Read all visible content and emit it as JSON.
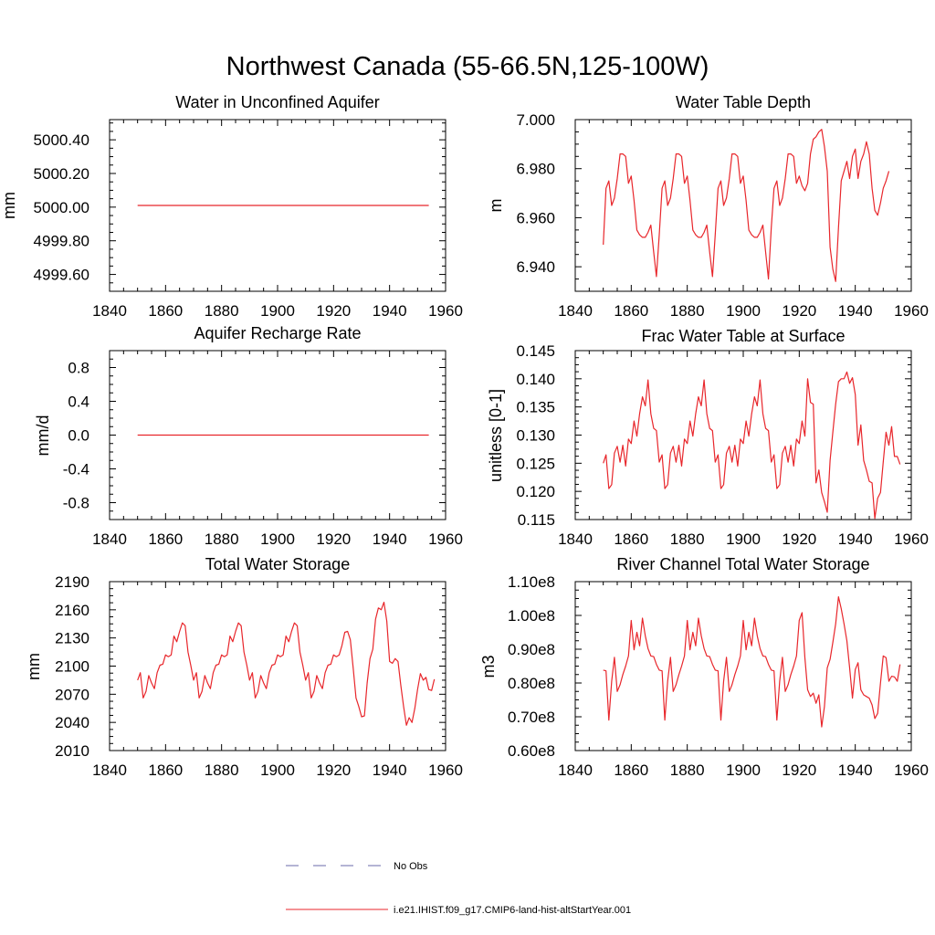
{
  "main_title": "Northwest Canada (55-66.5N,125-100W)",
  "legend": [
    {
      "label": "No Obs",
      "color": "#6a6aa8",
      "style": "dashed"
    },
    {
      "label": "i.e21.IHIST.f09_g17.CMIP6-land-hist-altStartYear.001",
      "color": "#e8262b",
      "style": "solid"
    }
  ],
  "series_color": "#e8262b",
  "chart_data": [
    {
      "type": "line",
      "title": "Water in Unconfined Aquifer",
      "xlabel": "",
      "ylabel": "mm",
      "xlim": [
        1840,
        1960
      ],
      "ylim": [
        4999.5,
        5000.52
      ],
      "xticks": [
        1840,
        1860,
        1880,
        1900,
        1920,
        1940,
        1960
      ],
      "xtick_labels": [
        "1840",
        "1860",
        "1880",
        "1900",
        "1920",
        "1940",
        "1960"
      ],
      "yticks": [
        4999.6,
        4999.8,
        5000.0,
        5000.2,
        5000.4
      ],
      "ytick_labels": [
        "4999.60",
        "4999.80",
        "5000.00",
        "5000.20",
        "5000.40"
      ],
      "grid": false,
      "series": [
        {
          "x0": 1850,
          "dx": 1,
          "values": [
            5000.01,
            5000.01,
            5000.01,
            5000.01,
            5000.01,
            5000.01,
            5000.01,
            5000.01,
            5000.01,
            5000.01,
            5000.01,
            5000.01,
            5000.01,
            5000.01,
            5000.01,
            5000.01,
            5000.01,
            5000.01,
            5000.01,
            5000.01,
            5000.01,
            5000.01,
            5000.01,
            5000.01,
            5000.01,
            5000.01,
            5000.01,
            5000.01,
            5000.01,
            5000.01,
            5000.01,
            5000.01,
            5000.01,
            5000.01,
            5000.01,
            5000.01,
            5000.01,
            5000.01,
            5000.01,
            5000.01,
            5000.01,
            5000.01,
            5000.01,
            5000.01,
            5000.01,
            5000.01,
            5000.01,
            5000.01,
            5000.01,
            5000.01,
            5000.01,
            5000.01,
            5000.01,
            5000.01,
            5000.01,
            5000.01,
            5000.01,
            5000.01,
            5000.01,
            5000.01,
            5000.01,
            5000.01,
            5000.01,
            5000.01,
            5000.01,
            5000.01,
            5000.01,
            5000.01,
            5000.01,
            5000.01,
            5000.01,
            5000.01,
            5000.01,
            5000.01,
            5000.01,
            5000.01,
            5000.01,
            5000.01,
            5000.01,
            5000.01,
            5000.01,
            5000.01,
            5000.01,
            5000.01,
            5000.01,
            5000.01,
            5000.01,
            5000.01,
            5000.01,
            5000.01,
            5000.01,
            5000.01,
            5000.01,
            5000.01,
            5000.01,
            5000.01,
            5000.01,
            5000.01,
            5000.01,
            5000.01,
            5000.01,
            5000.01,
            5000.01,
            5000.01,
            5000.01
          ]
        }
      ]
    },
    {
      "type": "line",
      "title": "Water Table Depth",
      "xlabel": "",
      "ylabel": "m",
      "xlim": [
        1840,
        1960
      ],
      "ylim": [
        6.93,
        7.0
      ],
      "xticks": [
        1840,
        1860,
        1880,
        1900,
        1920,
        1940,
        1960
      ],
      "xtick_labels": [
        "1840",
        "1860",
        "1880",
        "1900",
        "1920",
        "1940",
        "1960"
      ],
      "yticks": [
        6.94,
        6.96,
        6.98,
        7.0
      ],
      "ytick_labels": [
        "6.940",
        "6.960",
        "6.980",
        "7.000"
      ],
      "grid": false,
      "series": [
        {
          "x0": 1850,
          "dx": 1,
          "values": [
            6.949,
            6.972,
            6.975,
            6.965,
            6.968,
            6.976,
            6.986,
            6.986,
            6.985,
            6.974,
            6.977,
            6.967,
            6.955,
            6.953,
            6.952,
            6.952,
            6.954,
            6.957,
            6.946,
            6.936,
            6.953,
            6.972,
            6.975,
            6.965,
            6.968,
            6.976,
            6.986,
            6.986,
            6.985,
            6.974,
            6.977,
            6.967,
            6.955,
            6.953,
            6.952,
            6.952,
            6.954,
            6.957,
            6.946,
            6.936,
            6.953,
            6.972,
            6.975,
            6.965,
            6.968,
            6.976,
            6.986,
            6.986,
            6.985,
            6.974,
            6.977,
            6.967,
            6.955,
            6.953,
            6.952,
            6.952,
            6.954,
            6.957,
            6.946,
            6.935,
            6.956,
            6.972,
            6.975,
            6.965,
            6.968,
            6.976,
            6.986,
            6.986,
            6.985,
            6.974,
            6.977,
            6.973,
            6.971,
            6.974,
            6.986,
            6.992,
            6.993,
            6.995,
            6.996,
            6.989,
            6.979,
            6.948,
            6.939,
            6.934,
            6.956,
            6.975,
            6.979,
            6.983,
            6.976,
            6.985,
            6.988,
            6.976,
            6.983,
            6.986,
            6.991,
            6.986,
            6.972,
            6.963,
            6.961,
            6.966,
            6.972,
            6.975,
            6.979
          ]
        }
      ]
    },
    {
      "type": "line",
      "title": "Aquifer Recharge Rate",
      "xlabel": "",
      "ylabel": "mm/d",
      "xlim": [
        1840,
        1960
      ],
      "ylim": [
        -1,
        1
      ],
      "xticks": [
        1840,
        1860,
        1880,
        1900,
        1920,
        1940,
        1960
      ],
      "xtick_labels": [
        "1840",
        "1860",
        "1880",
        "1900",
        "1920",
        "1940",
        "1960"
      ],
      "yticks": [
        -0.8,
        -0.4,
        0.0,
        0.4,
        0.8
      ],
      "ytick_labels": [
        "-0.8",
        "-0.4",
        "0.0",
        "0.4",
        "0.8"
      ],
      "grid": false,
      "series": [
        {
          "x0": 1850,
          "dx": 1,
          "values": [
            0,
            0,
            0,
            0,
            0,
            0,
            0,
            0,
            0,
            0,
            0,
            0,
            0,
            0,
            0,
            0,
            0,
            0,
            0,
            0,
            0,
            0,
            0,
            0,
            0,
            0,
            0,
            0,
            0,
            0,
            0,
            0,
            0,
            0,
            0,
            0,
            0,
            0,
            0,
            0,
            0,
            0,
            0,
            0,
            0,
            0,
            0,
            0,
            0,
            0,
            0,
            0,
            0,
            0,
            0,
            0,
            0,
            0,
            0,
            0,
            0,
            0,
            0,
            0,
            0,
            0,
            0,
            0,
            0,
            0,
            0,
            0,
            0,
            0,
            0,
            0,
            0,
            0,
            0,
            0,
            0,
            0,
            0,
            0,
            0,
            0,
            0,
            0,
            0,
            0,
            0,
            0,
            0,
            0,
            0,
            0,
            0,
            0,
            0,
            0,
            0,
            0,
            0,
            0,
            0
          ]
        }
      ]
    },
    {
      "type": "line",
      "title": "Frac Water Table at Surface",
      "xlabel": "",
      "ylabel": "unitless [0-1]",
      "xlim": [
        1840,
        1960
      ],
      "ylim": [
        0.115,
        0.145
      ],
      "xticks": [
        1840,
        1860,
        1880,
        1900,
        1920,
        1940,
        1960
      ],
      "xtick_labels": [
        "1840",
        "1860",
        "1880",
        "1900",
        "1920",
        "1940",
        "1960"
      ],
      "yticks": [
        0.115,
        0.12,
        0.125,
        0.13,
        0.135,
        0.14,
        0.145
      ],
      "ytick_labels": [
        "0.115",
        "0.120",
        "0.125",
        "0.130",
        "0.135",
        "0.140",
        "0.145"
      ],
      "grid": false,
      "series": [
        {
          "x0": 1850,
          "dx": 1,
          "values": [
            0.125,
            0.1265,
            0.1205,
            0.1212,
            0.1268,
            0.128,
            0.1252,
            0.1282,
            0.1245,
            0.1293,
            0.1285,
            0.1325,
            0.1298,
            0.1338,
            0.1368,
            0.1352,
            0.1398,
            0.1338,
            0.1312,
            0.1308,
            0.1252,
            0.1265,
            0.1205,
            0.1212,
            0.1268,
            0.128,
            0.1252,
            0.1282,
            0.1245,
            0.1293,
            0.1285,
            0.1325,
            0.1298,
            0.1338,
            0.1368,
            0.1352,
            0.1398,
            0.1338,
            0.1312,
            0.1308,
            0.1252,
            0.1265,
            0.1205,
            0.1212,
            0.1268,
            0.128,
            0.1252,
            0.1282,
            0.1245,
            0.1293,
            0.1285,
            0.1325,
            0.1298,
            0.1338,
            0.1368,
            0.1352,
            0.1398,
            0.1338,
            0.1312,
            0.1308,
            0.1252,
            0.1265,
            0.1205,
            0.1212,
            0.1268,
            0.128,
            0.1252,
            0.1282,
            0.1245,
            0.1293,
            0.1285,
            0.1325,
            0.1298,
            0.14,
            0.1358,
            0.1355,
            0.1215,
            0.1238,
            0.1198,
            0.1182,
            0.1163,
            0.1255,
            0.1305,
            0.1355,
            0.1395,
            0.14,
            0.14,
            0.1412,
            0.1392,
            0.1402,
            0.1372,
            0.1282,
            0.1318,
            0.1255,
            0.1238,
            0.1218,
            0.1215,
            0.1152,
            0.1188,
            0.1198,
            0.1252,
            0.1305,
            0.1282,
            0.1315,
            0.1262,
            0.1262,
            0.1248
          ]
        }
      ]
    },
    {
      "type": "line",
      "title": "Total Water Storage",
      "xlabel": "",
      "ylabel": "mm",
      "xlim": [
        1840,
        1960
      ],
      "ylim": [
        2010,
        2190
      ],
      "xticks": [
        1840,
        1860,
        1880,
        1900,
        1920,
        1940,
        1960
      ],
      "xtick_labels": [
        "1840",
        "1860",
        "1880",
        "1900",
        "1920",
        "1940",
        "1960"
      ],
      "yticks": [
        2010,
        2040,
        2070,
        2100,
        2130,
        2160,
        2190
      ],
      "ytick_labels": [
        "2010",
        "2040",
        "2070",
        "2100",
        "2130",
        "2160",
        "2190"
      ],
      "grid": false,
      "series": [
        {
          "x0": 1850,
          "dx": 1,
          "values": [
            2085,
            2093,
            2066,
            2073,
            2090,
            2082,
            2076,
            2093,
            2101,
            2102,
            2112,
            2110,
            2112,
            2132,
            2126,
            2137,
            2146,
            2143,
            2115,
            2101,
            2085,
            2093,
            2066,
            2073,
            2090,
            2082,
            2076,
            2093,
            2101,
            2102,
            2112,
            2110,
            2112,
            2132,
            2126,
            2137,
            2146,
            2143,
            2115,
            2101,
            2085,
            2093,
            2066,
            2073,
            2090,
            2082,
            2076,
            2093,
            2101,
            2102,
            2112,
            2110,
            2112,
            2132,
            2126,
            2137,
            2146,
            2143,
            2115,
            2101,
            2085,
            2093,
            2066,
            2073,
            2090,
            2082,
            2076,
            2093,
            2101,
            2102,
            2112,
            2110,
            2112,
            2122,
            2136,
            2137,
            2128,
            2098,
            2066,
            2057,
            2046,
            2047,
            2082,
            2108,
            2118,
            2150,
            2162,
            2160,
            2168,
            2148,
            2105,
            2103,
            2108,
            2105,
            2080,
            2057,
            2037,
            2045,
            2040,
            2055,
            2075,
            2092,
            2085,
            2088,
            2075,
            2074,
            2086
          ]
        }
      ]
    },
    {
      "type": "line",
      "title": "River Channel Total Water Storage",
      "xlabel": "",
      "ylabel": "m3",
      "xlim": [
        1840,
        1960
      ],
      "ylim": [
        60000000,
        110000000
      ],
      "xticks": [
        1840,
        1860,
        1880,
        1900,
        1920,
        1940,
        1960
      ],
      "xtick_labels": [
        "1840",
        "1860",
        "1880",
        "1900",
        "1920",
        "1940",
        "1960"
      ],
      "yticks": [
        60000000,
        70000000,
        80000000,
        90000000,
        100000000,
        110000000
      ],
      "ytick_labels": [
        "0.60e8",
        "0.70e8",
        "0.80e8",
        "0.90e8",
        "1.00e8",
        "1.10e8"
      ],
      "grid": false,
      "series": [
        {
          "x0": 1850,
          "dx": 1,
          "values": [
            83800000,
            83600000,
            69000000,
            80500000,
            87600000,
            77500000,
            79500000,
            82500000,
            85000000,
            88000000,
            98500000,
            89800000,
            95000000,
            91000000,
            99200000,
            94000000,
            90200000,
            88000000,
            87800000,
            85500000,
            83800000,
            83600000,
            69000000,
            80500000,
            87600000,
            77500000,
            79500000,
            82500000,
            85000000,
            88000000,
            98500000,
            89800000,
            95000000,
            91000000,
            99200000,
            94000000,
            90200000,
            88000000,
            87800000,
            85500000,
            83800000,
            83600000,
            69000000,
            80500000,
            87600000,
            77500000,
            79500000,
            82500000,
            85000000,
            88000000,
            98500000,
            89800000,
            95000000,
            91000000,
            99200000,
            94000000,
            90200000,
            88000000,
            87800000,
            85500000,
            83800000,
            83600000,
            69000000,
            80500000,
            87600000,
            77500000,
            79500000,
            82500000,
            85000000,
            88000000,
            98500000,
            100800000,
            87500000,
            78000000,
            76000000,
            77000000,
            74000000,
            76500000,
            67000000,
            73000000,
            84500000,
            87000000,
            92000000,
            97500000,
            105500000,
            102000000,
            97500000,
            92500000,
            84500000,
            75500000,
            84000000,
            86000000,
            78000000,
            76500000,
            76000000,
            75500000,
            73500000,
            69500000,
            71000000,
            80000000,
            88000000,
            87500000,
            80500000,
            82000000,
            81800000,
            80500000,
            85500000
          ]
        }
      ]
    }
  ]
}
